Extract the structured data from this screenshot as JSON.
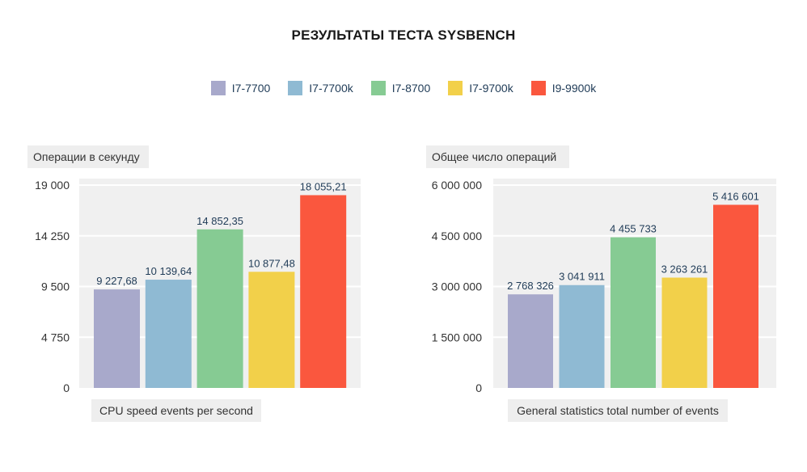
{
  "title": "РЕЗУЛЬТАТЫ ТЕСТА SYSBENCH",
  "legend": [
    {
      "label": "I7-7700",
      "color": "#a8a9cb"
    },
    {
      "label": "I7-7700k",
      "color": "#8fbad3"
    },
    {
      "label": "I7-8700",
      "color": "#86cb93"
    },
    {
      "label": "I7-9700k",
      "color": "#f2d04a"
    },
    {
      "label": "I9-9900k",
      "color": "#fa573e"
    }
  ],
  "chart_data": [
    {
      "type": "bar",
      "ylabel": "Операции в секунду",
      "xlabel": "CPU speed events per second",
      "categories": [
        "I7-7700",
        "I7-7700k",
        "I7-8700",
        "I7-9700k",
        "I9-9900k"
      ],
      "values": [
        9227.68,
        10139.64,
        14852.35,
        10877.48,
        18055.21
      ],
      "value_labels": [
        "9 227,68",
        "10 139,64",
        "14 852,35",
        "10 877,48",
        "18 055,21"
      ],
      "yticks": [
        0,
        4750,
        9500,
        14250,
        19000
      ],
      "ytick_labels": [
        "0",
        "4 750",
        "9 500",
        "14 250",
        "19 000"
      ],
      "ylim": [
        0,
        19000
      ]
    },
    {
      "type": "bar",
      "ylabel": "Общее число операций",
      "xlabel": "General statistics total number of events",
      "categories": [
        "I7-7700",
        "I7-7700k",
        "I7-8700",
        "I7-9700k",
        "I9-9900k"
      ],
      "values": [
        2768326,
        3041911,
        4455733,
        3263261,
        5416601
      ],
      "value_labels": [
        "2 768 326",
        "3 041 911",
        "4 455 733",
        "3 263 261",
        "5 416 601"
      ],
      "yticks": [
        0,
        1500000,
        3000000,
        4500000,
        6000000
      ],
      "ytick_labels": [
        "0",
        "1 500 000",
        "3 000 000",
        "4 500 000",
        "6 000 000"
      ],
      "ylim": [
        0,
        6000000
      ]
    }
  ]
}
